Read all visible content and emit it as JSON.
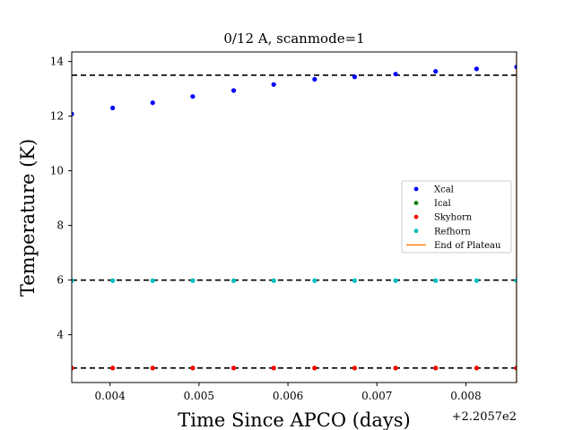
{
  "chart_data": {
    "type": "scatter",
    "title": "0/12 A, scanmode=1",
    "xlabel": "Time Since APCO (days)",
    "ylabel": "Temperature (K)",
    "x_offset_label": "+2.2057e2",
    "xlim": [
      220.57357,
      220.57857
    ],
    "ylim": [
      2.25,
      14.35
    ],
    "xticks": [
      220.574,
      220.575,
      220.576,
      220.577,
      220.578
    ],
    "xtick_labels": [
      "0.004",
      "0.005",
      "0.006",
      "0.007",
      "0.008"
    ],
    "yticks": [
      4,
      6,
      8,
      10,
      12,
      14
    ],
    "ytick_labels": [
      "4",
      "6",
      "8",
      "10",
      "12",
      "14"
    ],
    "grid": false,
    "legend_position": "center-right",
    "x": [
      220.57357,
      220.57403,
      220.57448,
      220.57493,
      220.57539,
      220.57584,
      220.5763,
      220.57675,
      220.57721,
      220.57766,
      220.57812,
      220.57857
    ],
    "series": [
      {
        "name": "Xcal",
        "color": "#0000ff",
        "values": [
          12.08,
          12.3,
          12.49,
          12.72,
          12.94,
          13.16,
          13.35,
          13.44,
          13.54,
          13.64,
          13.73,
          13.8
        ]
      },
      {
        "name": "Ical",
        "color": "#008000",
        "values": [
          2.78,
          2.78,
          2.78,
          2.78,
          2.78,
          2.78,
          2.78,
          2.78,
          2.78,
          2.78,
          2.78,
          2.78
        ]
      },
      {
        "name": "Skyhorn",
        "color": "#ff0000",
        "values": [
          2.78,
          2.78,
          2.78,
          2.78,
          2.78,
          2.78,
          2.78,
          2.78,
          2.78,
          2.78,
          2.78,
          2.78
        ]
      },
      {
        "name": "Refhorn",
        "color": "#00bfbf",
        "values": [
          5.98,
          5.98,
          5.98,
          5.98,
          5.98,
          5.98,
          5.98,
          5.98,
          5.98,
          5.98,
          5.98,
          5.98
        ]
      }
    ],
    "reference_lines": [
      {
        "y": 13.5,
        "color": "#000000",
        "style": "dashed"
      },
      {
        "y": 6.0,
        "color": "#000000",
        "style": "dashed"
      },
      {
        "y": 2.78,
        "color": "#000000",
        "style": "dashed"
      }
    ],
    "vertical_lines": [
      {
        "name": "End of Plateau",
        "x": 220.57857,
        "color": "#ff7f0e"
      }
    ]
  }
}
